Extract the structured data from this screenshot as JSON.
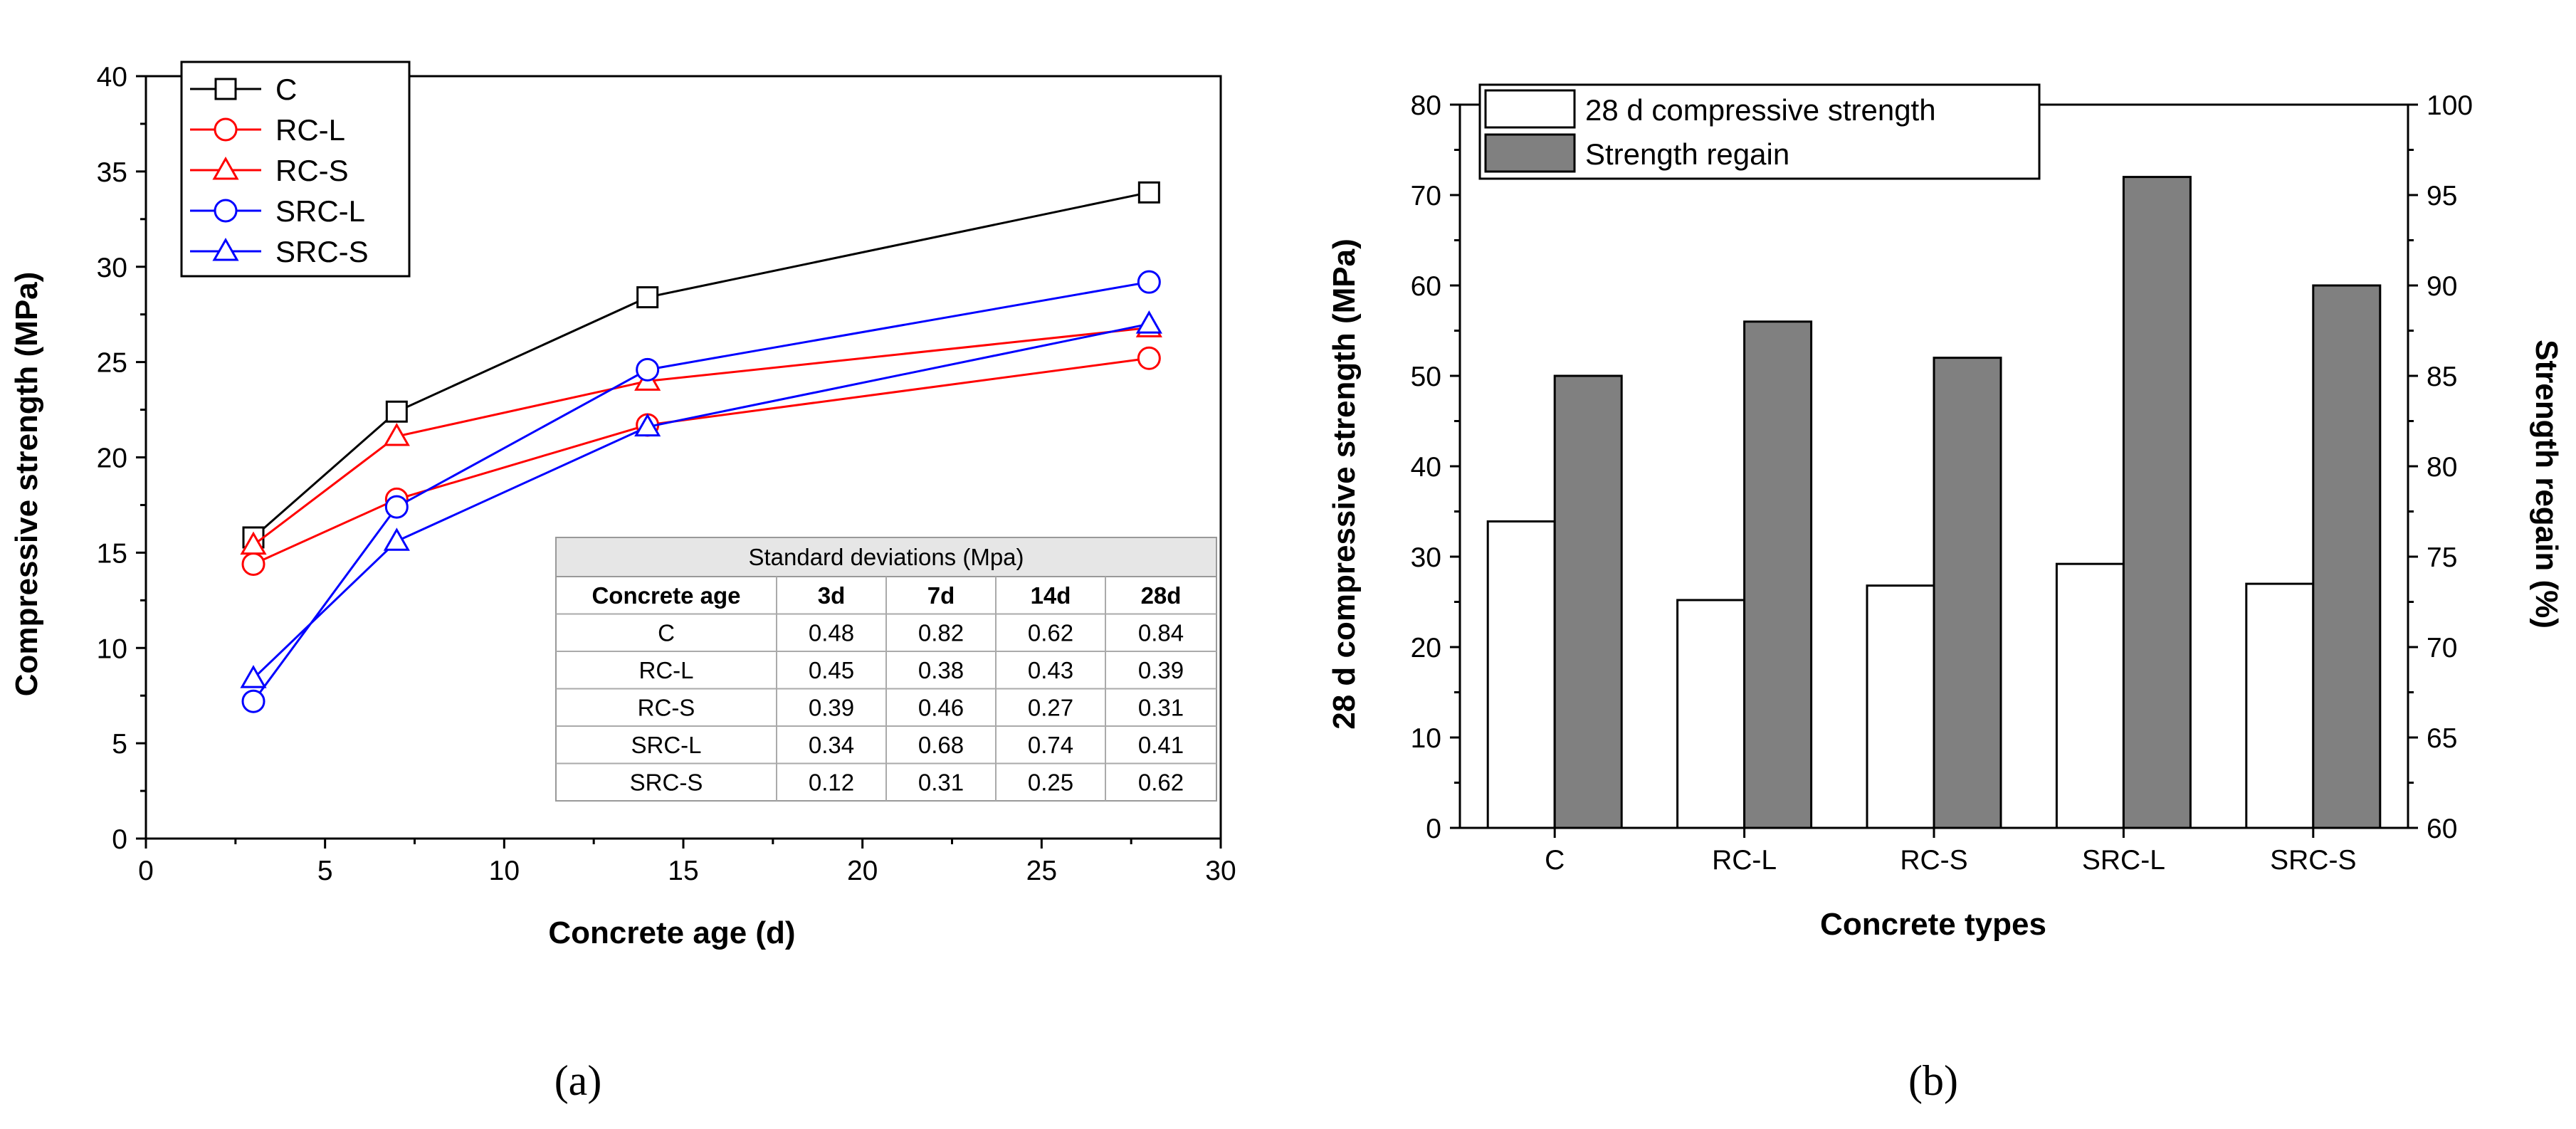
{
  "chart_data": [
    {
      "type": "line",
      "panel": "a",
      "caption": "(a)",
      "xlabel": "Concrete age (d)",
      "ylabel": "Compressive strength (MPa)",
      "xlim": [
        0,
        30
      ],
      "ylim": [
        0,
        40
      ],
      "xticks": [
        0,
        5,
        10,
        15,
        20,
        25,
        30
      ],
      "yticks": [
        0,
        5,
        10,
        15,
        20,
        25,
        30,
        35,
        40
      ],
      "x": [
        3,
        7,
        14,
        28
      ],
      "series": [
        {
          "name": "C",
          "marker": "square",
          "color": "#000000",
          "values": [
            15.8,
            22.4,
            28.4,
            33.9
          ]
        },
        {
          "name": "RC-L",
          "marker": "circle",
          "color": "#ff0000",
          "values": [
            14.4,
            17.8,
            21.7,
            25.2
          ]
        },
        {
          "name": "RC-S",
          "marker": "triangle",
          "color": "#ff0000",
          "values": [
            15.4,
            21.1,
            24.0,
            26.8
          ]
        },
        {
          "name": "SRC-L",
          "marker": "circle",
          "color": "#0000ff",
          "values": [
            7.2,
            17.4,
            24.6,
            29.2
          ]
        },
        {
          "name": "SRC-S",
          "marker": "triangle",
          "color": "#0000ff",
          "values": [
            8.4,
            15.6,
            21.6,
            27.0
          ]
        }
      ],
      "legend": "top-left",
      "inset_table": {
        "title": "Standard deviations (Mpa)",
        "header": [
          "Concrete age",
          "3d",
          "7d",
          "14d",
          "28d"
        ],
        "rows": [
          [
            "C",
            "0.48",
            "0.82",
            "0.62",
            "0.84"
          ],
          [
            "RC-L",
            "0.45",
            "0.38",
            "0.43",
            "0.39"
          ],
          [
            "RC-S",
            "0.39",
            "0.46",
            "0.27",
            "0.31"
          ],
          [
            "SRC-L",
            "0.34",
            "0.68",
            "0.74",
            "0.41"
          ],
          [
            "SRC-S",
            "0.12",
            "0.31",
            "0.25",
            "0.62"
          ]
        ]
      }
    },
    {
      "type": "bar",
      "panel": "b",
      "caption": "(b)",
      "xlabel": "Concrete types",
      "ylabel": "28 d compressive strength (MPa)",
      "y2label": "Strength regain (%)",
      "ylim": [
        0,
        80
      ],
      "y2lim": [
        60,
        100
      ],
      "yticks": [
        0,
        10,
        20,
        30,
        40,
        50,
        60,
        70,
        80
      ],
      "y2ticks": [
        60,
        65,
        70,
        75,
        80,
        85,
        90,
        95,
        100
      ],
      "categories": [
        "C",
        "RC-L",
        "RC-S",
        "SRC-L",
        "SRC-S"
      ],
      "series": [
        {
          "name": "28 d compressive strength",
          "axis": "left",
          "color": "#ffffff",
          "values": [
            33.9,
            25.2,
            26.8,
            29.2,
            27.0
          ]
        },
        {
          "name": "Strength regain",
          "axis": "right",
          "color": "#808080",
          "values": [
            85,
            88,
            86,
            96,
            90
          ]
        }
      ],
      "legend": "top-left"
    }
  ]
}
